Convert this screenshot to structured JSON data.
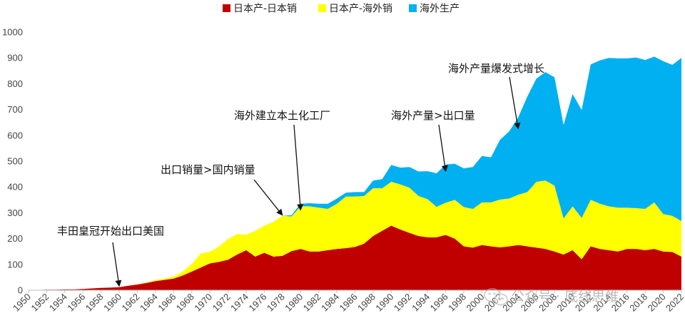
{
  "chart_data": {
    "type": "area",
    "stacked": true,
    "title": "",
    "xlabel": "",
    "ylabel": "",
    "xlim": [
      1950,
      2022
    ],
    "ylim": [
      0,
      1000
    ],
    "yticks": [
      0,
      100,
      200,
      300,
      400,
      500,
      600,
      700,
      800,
      900,
      1000
    ],
    "xticks": [
      1950,
      1952,
      1954,
      1956,
      1958,
      1960,
      1962,
      1964,
      1966,
      1968,
      1970,
      1972,
      1974,
      1976,
      1978,
      1980,
      1982,
      1984,
      1986,
      1988,
      1990,
      1992,
      1994,
      1996,
      1998,
      2000,
      2002,
      2004,
      2006,
      2008,
      2010,
      2012,
      2014,
      2016,
      2018,
      2020,
      2022
    ],
    "legend_position": "top-center",
    "x": [
      1950,
      1951,
      1952,
      1953,
      1954,
      1955,
      1956,
      1957,
      1958,
      1959,
      1960,
      1961,
      1962,
      1963,
      1964,
      1965,
      1966,
      1967,
      1968,
      1969,
      1970,
      1971,
      1972,
      1973,
      1974,
      1975,
      1976,
      1977,
      1978,
      1979,
      1980,
      1981,
      1982,
      1983,
      1984,
      1985,
      1986,
      1987,
      1988,
      1989,
      1990,
      1991,
      1992,
      1993,
      1994,
      1995,
      1996,
      1997,
      1998,
      1999,
      2000,
      2001,
      2002,
      2003,
      2004,
      2005,
      2006,
      2007,
      2008,
      2009,
      2010,
      2011,
      2012,
      2013,
      2014,
      2015,
      2016,
      2017,
      2018,
      2019,
      2020,
      2021,
      2022
    ],
    "series": [
      {
        "name": "日本产-日本销",
        "color": "#C00000",
        "values": [
          1,
          1,
          2,
          2,
          3,
          3,
          5,
          7,
          9,
          10,
          12,
          17,
          22,
          28,
          35,
          40,
          45,
          57,
          72,
          88,
          104,
          110,
          118,
          138,
          155,
          130,
          145,
          130,
          133,
          151,
          160,
          150,
          150,
          155,
          160,
          163,
          168,
          180,
          210,
          230,
          250,
          235,
          222,
          210,
          205,
          205,
          214,
          200,
          170,
          165,
          175,
          170,
          166,
          170,
          175,
          170,
          165,
          160,
          150,
          138,
          155,
          120,
          170,
          160,
          155,
          150,
          160,
          160,
          155,
          160,
          150,
          148,
          130
        ]
      },
      {
        "name": "日本产-海外销",
        "color": "#FFFF00",
        "values": [
          0,
          0,
          0,
          0,
          0,
          0,
          0,
          0,
          0,
          0,
          0,
          0,
          1,
          2,
          4,
          5,
          8,
          15,
          30,
          55,
          45,
          60,
          80,
          80,
          60,
          100,
          105,
          135,
          155,
          135,
          165,
          175,
          170,
          160,
          175,
          200,
          195,
          185,
          185,
          165,
          170,
          175,
          175,
          155,
          148,
          118,
          125,
          150,
          152,
          150,
          165,
          170,
          185,
          185,
          195,
          210,
          255,
          265,
          255,
          140,
          170,
          160,
          180,
          175,
          170,
          170,
          160,
          158,
          160,
          180,
          145,
          140,
          138
        ]
      },
      {
        "name": "海外生产",
        "color": "#00B0F0",
        "values": [
          0,
          0,
          0,
          0,
          0,
          0,
          0,
          0,
          0,
          0,
          0,
          0,
          0,
          0,
          0,
          0,
          0,
          0,
          0,
          0,
          0,
          0,
          0,
          0,
          0,
          0,
          0,
          0,
          0,
          5,
          10,
          12,
          15,
          20,
          20,
          15,
          17,
          15,
          30,
          35,
          65,
          65,
          80,
          95,
          108,
          130,
          148,
          140,
          150,
          162,
          180,
          175,
          232,
          260,
          300,
          370,
          400,
          420,
          420,
          362,
          435,
          418,
          525,
          555,
          575,
          578,
          578,
          583,
          577,
          565,
          592,
          585,
          632
        ]
      }
    ],
    "annotations": [
      {
        "text": "丰田皇冠开始出口美国",
        "x": 1960,
        "y": 10
      },
      {
        "text": "出口销量>国内销量",
        "x": 1978,
        "y": 285
      },
      {
        "text": "海外建立本土化工厂",
        "x": 1980,
        "y": 305
      },
      {
        "text": "海外产量>出口量",
        "x": 1996,
        "y": 455
      },
      {
        "text": "海外产量爆发式增长",
        "x": 2004,
        "y": 620
      }
    ]
  },
  "watermark": {
    "text": "公众号 · 底线思维",
    "icon": "wechat-icon"
  }
}
